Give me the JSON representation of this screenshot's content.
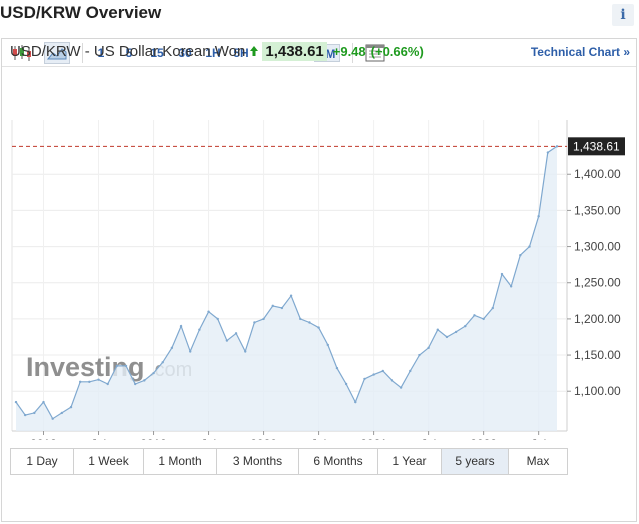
{
  "header": {
    "title": "USD/KRW Overview",
    "info_label": "i"
  },
  "toolbar": {
    "timeframes": [
      "1",
      "5",
      "15",
      "30",
      "1H",
      "5H",
      "1D",
      "1W",
      "1M"
    ],
    "active_timeframe": "1M",
    "technical_link": "Technical Chart »"
  },
  "quote": {
    "name": "USD/KRW - US Dollar Korean Won",
    "price": "1,438.61",
    "change": "+9.48",
    "change_pct": "(+0.66%)"
  },
  "colors": {
    "up": "#1f9a1f",
    "link": "#2d5ea8",
    "line": "#7fa8cf",
    "fill": "#e3edf6",
    "last_price_line": "#c0392b"
  },
  "watermark": {
    "brand": "Investing",
    "suffix": ".com"
  },
  "chart_data": {
    "type": "area",
    "x": [
      "2017-10",
      "2017-11",
      "2017-12",
      "2018-01",
      "2018-02",
      "2018-03",
      "2018-04",
      "2018-05",
      "2018-06",
      "2018-07",
      "2018-08",
      "2018-09",
      "2018-10",
      "2018-11",
      "2018-12",
      "2019-01",
      "2019-02",
      "2019-03",
      "2019-04",
      "2019-05",
      "2019-06",
      "2019-07",
      "2019-08",
      "2019-09",
      "2019-10",
      "2019-11",
      "2019-12",
      "2020-01",
      "2020-02",
      "2020-03",
      "2020-04",
      "2020-05",
      "2020-06",
      "2020-07",
      "2020-08",
      "2020-09",
      "2020-10",
      "2020-11",
      "2020-12",
      "2021-01",
      "2021-02",
      "2021-03",
      "2021-04",
      "2021-05",
      "2021-06",
      "2021-07",
      "2021-08",
      "2021-09",
      "2021-10",
      "2021-11",
      "2021-12",
      "2022-01",
      "2022-02",
      "2022-03",
      "2022-04",
      "2022-05",
      "2022-06",
      "2022-07",
      "2022-08",
      "2022-09"
    ],
    "values": [
      1085,
      1067,
      1070,
      1085,
      1062,
      1070,
      1078,
      1113,
      1113,
      1116,
      1110,
      1135,
      1135,
      1110,
      1115,
      1125,
      1140,
      1160,
      1190,
      1155,
      1185,
      1210,
      1200,
      1170,
      1180,
      1155,
      1195,
      1200,
      1218,
      1215,
      1232,
      1200,
      1195,
      1188,
      1164,
      1132,
      1110,
      1085,
      1117,
      1123,
      1128,
      1115,
      1105,
      1128,
      1150,
      1160,
      1185,
      1175,
      1182,
      1190,
      1205,
      1200,
      1215,
      1262,
      1245,
      1288,
      1300,
      1342,
      1430,
      1438.61
    ],
    "x_tick_labels": [
      "2018",
      "Jul",
      "2019",
      "Jul",
      "2020",
      "Jul",
      "2021",
      "Jul",
      "2022",
      "Jul"
    ],
    "y_ticks": [
      1100,
      1150,
      1200,
      1250,
      1300,
      1350,
      1400
    ],
    "y_tick_labels": [
      "1,100.00",
      "1,150.00",
      "1,200.00",
      "1,250.00",
      "1,300.00",
      "1,350.00",
      "1,400.00"
    ],
    "ylim": [
      1045,
      1475
    ],
    "last_value": 1438.61,
    "last_value_label": "1,438.61",
    "grid": true
  },
  "ranges": {
    "items": [
      "1 Day",
      "1 Week",
      "1 Month",
      "3 Months",
      "6 Months",
      "1 Year",
      "5 years",
      "Max"
    ],
    "active": "5 years"
  }
}
